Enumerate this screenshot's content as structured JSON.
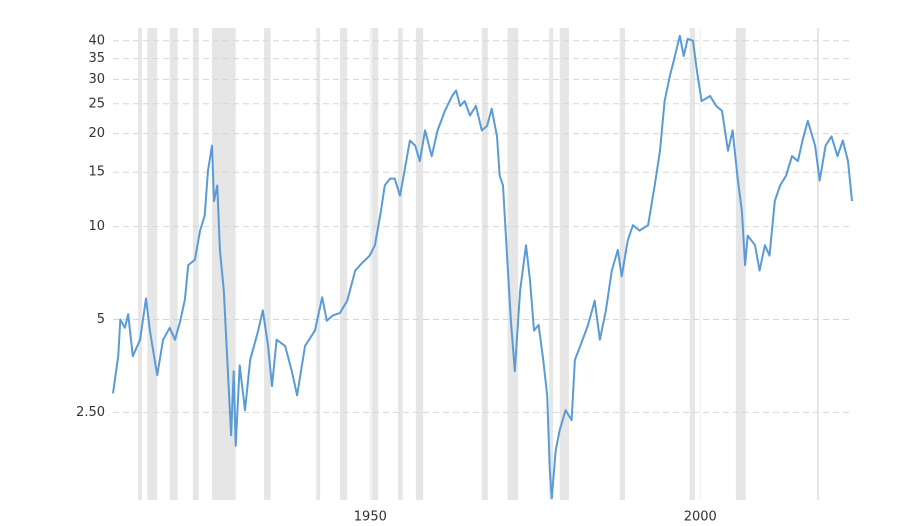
{
  "chart_data": {
    "type": "line",
    "x": [
      1911.0,
      1911.8,
      1912.1,
      1912.8,
      1913.3,
      1914.0,
      1915.1,
      1916.0,
      1916.6,
      1917.7,
      1918.6,
      1919.6,
      1920.4,
      1921.2,
      1921.9,
      1922.4,
      1923.4,
      1924.2,
      1924.9,
      1925.4,
      1926.0,
      1926.3,
      1926.8,
      1927.2,
      1927.8,
      1928.3,
      1928.9,
      1929.3,
      1929.6,
      1930.2,
      1931.0,
      1931.8,
      1933.0,
      1933.7,
      1934.5,
      1935.1,
      1935.8,
      1937.1,
      1938.1,
      1938.9,
      1940.1,
      1941.6,
      1942.7,
      1943.4,
      1944.3,
      1945.4,
      1946.5,
      1947.7,
      1948.7,
      1949.9,
      1950.7,
      1951.5,
      1952.2,
      1953.0,
      1953.7,
      1954.5,
      1955.2,
      1956.0,
      1956.8,
      1957.5,
      1958.3,
      1959.3,
      1960.2,
      1961.3,
      1962.4,
      1963.0,
      1963.6,
      1964.3,
      1965.1,
      1966.0,
      1966.9,
      1967.7,
      1968.4,
      1969.2,
      1969.6,
      1970.1,
      1970.5,
      1970.8,
      1971.3,
      1971.9,
      1972.7,
      1973.6,
      1974.2,
      1974.8,
      1975.5,
      1976.2,
      1976.8,
      1977.2,
      1977.5,
      1978.1,
      1978.7,
      1979.6,
      1980.5,
      1981.0,
      1981.8,
      1983.0,
      1984.0,
      1984.8,
      1985.7,
      1986.6,
      1987.5,
      1988.1,
      1989.0,
      1989.8,
      1990.8,
      1992.1,
      1993.1,
      1993.9,
      1994.6,
      1995.4,
      1996.0,
      1996.9,
      1997.5,
      1998.1,
      1998.9,
      1999.5,
      2000.2,
      2001.5,
      2002.4,
      2003.3,
      2004.2,
      2004.9,
      2005.7,
      2006.3,
      2006.8,
      2007.2,
      2008.3,
      2009.0,
      2009.8,
      2010.5,
      2011.3,
      2012.1,
      2013.0,
      2013.9,
      2014.8,
      2015.5,
      2016.3,
      2017.4,
      2018.1,
      2019.0,
      2019.9,
      2020.8,
      2021.6,
      2022.4,
      2023.0
    ],
    "series": [
      {
        "color": "#5b9bd5",
        "values": [
          2.88,
          3.83,
          5.0,
          4.7,
          5.2,
          3.8,
          4.3,
          5.85,
          4.6,
          3.3,
          4.3,
          4.7,
          4.3,
          4.95,
          5.8,
          7.5,
          7.8,
          9.7,
          10.85,
          15.2,
          18.3,
          12.1,
          13.6,
          8.4,
          6.2,
          3.8,
          2.11,
          3.4,
          1.95,
          3.55,
          2.54,
          3.7,
          4.6,
          5.35,
          4.1,
          3.04,
          4.3,
          4.1,
          3.4,
          2.84,
          4.1,
          4.6,
          5.9,
          4.95,
          5.15,
          5.25,
          5.75,
          7.2,
          7.6,
          8.05,
          8.7,
          10.85,
          13.6,
          14.3,
          14.3,
          12.6,
          15.2,
          19.0,
          18.3,
          16.3,
          20.5,
          16.9,
          20.5,
          23.7,
          26.5,
          27.6,
          24.6,
          25.5,
          22.9,
          24.6,
          20.5,
          21.2,
          24.1,
          19.6,
          14.6,
          13.6,
          9.7,
          7.5,
          4.95,
          3.4,
          6.2,
          8.7,
          6.7,
          4.6,
          4.8,
          3.7,
          2.84,
          1.62,
          1.32,
          1.88,
          2.19,
          2.54,
          2.36,
          3.7,
          4.1,
          4.8,
          5.75,
          4.3,
          5.35,
          7.2,
          8.4,
          6.9,
          9.0,
          10.1,
          9.7,
          10.1,
          13.6,
          17.6,
          25.5,
          30.8,
          34.5,
          41.5,
          35.7,
          40.6,
          40.0,
          32.0,
          25.5,
          26.5,
          24.6,
          23.7,
          17.6,
          20.5,
          14.1,
          11.3,
          7.5,
          9.35,
          8.7,
          7.2,
          8.7,
          8.05,
          12.1,
          13.6,
          14.6,
          16.9,
          16.3,
          19.0,
          22.0,
          18.3,
          14.1,
          18.3,
          19.6,
          16.9,
          19.0,
          16.3,
          12.1
        ]
      }
    ],
    "recessions": [
      [
        1914.8,
        1915.4
      ],
      [
        1916.2,
        1917.7
      ],
      [
        1919.6,
        1920.8
      ],
      [
        1923.1,
        1924.0
      ],
      [
        1926.0,
        1929.6
      ],
      [
        1933.9,
        1934.9
      ],
      [
        1941.8,
        1942.4
      ],
      [
        1945.4,
        1946.5
      ],
      [
        1950.2,
        1951.2
      ],
      [
        1954.2,
        1954.9
      ],
      [
        1956.9,
        1958.0
      ],
      [
        1966.9,
        1967.8
      ],
      [
        1970.8,
        1972.4
      ],
      [
        1977.1,
        1977.7
      ],
      [
        1978.7,
        1980.1
      ],
      [
        1987.8,
        1988.6
      ],
      [
        1998.4,
        1999.2
      ],
      [
        2005.4,
        2006.9
      ],
      [
        2017.7,
        2018.0
      ]
    ],
    "recession_color": "#e6e6e6",
    "xlim": [
      1911,
      2023
    ],
    "xticks": [
      1950,
      2000
    ],
    "ylim": [
      1.3,
      44
    ],
    "yticks": [
      {
        "value": 2.5,
        "label": "2.50"
      },
      5,
      10,
      15,
      20,
      25,
      30,
      35,
      40
    ],
    "log_y": true,
    "grid": true
  }
}
